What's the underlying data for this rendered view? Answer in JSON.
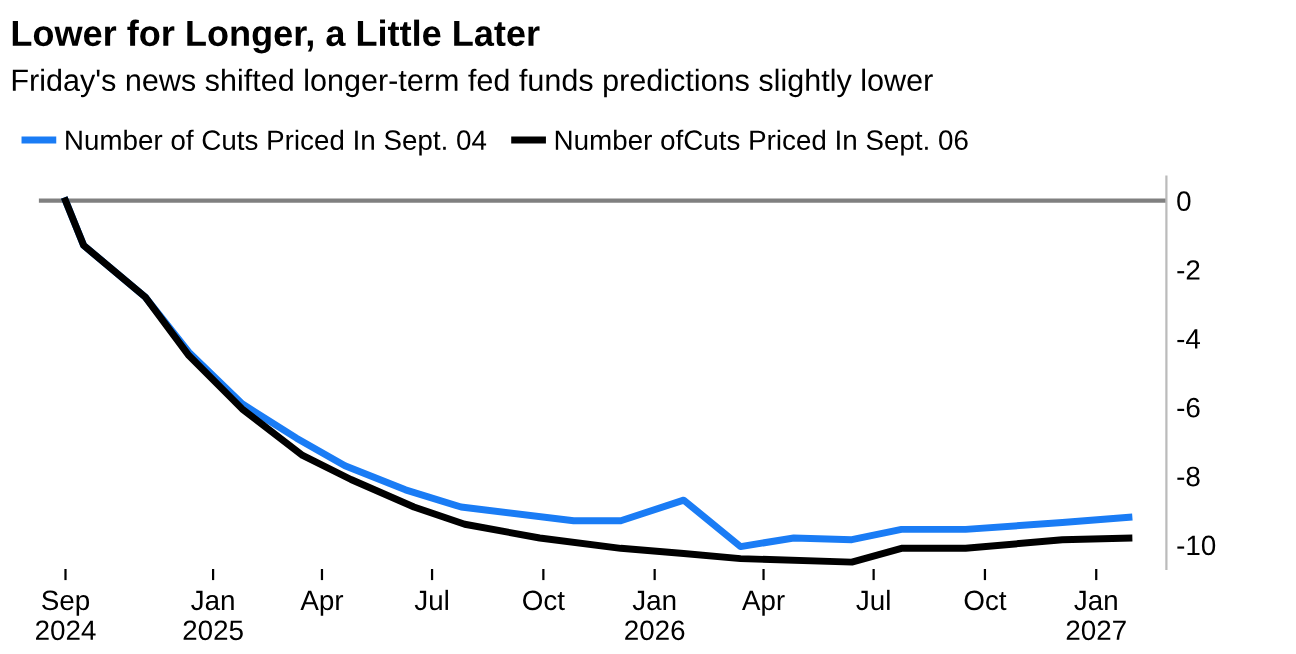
{
  "chart_data": {
    "type": "line",
    "title": "Lower for Longer, a Little Later",
    "subtitle": "Friday's news shifted longer-term fed funds predictions slightly lower",
    "series": [
      {
        "name": "Number of Cuts Priced In Sept. 04",
        "color": "#1a7cf5",
        "x": [
          "2024-09-01",
          "2024-09-16",
          "2024-11-06",
          "2024-12-12",
          "2025-01-25",
          "2025-03-11",
          "2025-04-20",
          "2025-06-09",
          "2025-07-25",
          "2025-10-26",
          "2025-12-04",
          "2026-01-25",
          "2026-03-13",
          "2026-04-26",
          "2026-06-13",
          "2026-07-24",
          "2026-09-15",
          "2026-12-04",
          "2027-01-28"
        ],
        "values": [
          0,
          -1.3,
          -2.8,
          -4.4,
          -5.9,
          -6.9,
          -7.7,
          -8.4,
          -8.9,
          -9.3,
          -9.3,
          -8.7,
          -10.05,
          -9.8,
          -9.85,
          -9.55,
          -9.55,
          -9.35,
          -9.2
        ]
      },
      {
        "name": "Number ofCuts Priced In Sept. 06",
        "color": "#000000",
        "x": [
          "2024-09-01",
          "2024-09-16",
          "2024-11-06",
          "2024-12-12",
          "2025-01-25",
          "2025-03-16",
          "2025-04-25",
          "2025-06-16",
          "2025-07-28",
          "2025-09-28",
          "2025-12-04",
          "2026-01-25",
          "2026-03-13",
          "2026-06-13",
          "2026-07-24",
          "2026-09-15",
          "2026-12-04",
          "2027-01-28"
        ],
        "values": [
          0,
          -1.3,
          -2.8,
          -4.5,
          -6.05,
          -7.4,
          -8.1,
          -8.9,
          -9.4,
          -9.8,
          -10.1,
          -10.25,
          -10.4,
          -10.5,
          -10.1,
          -10.1,
          -9.85,
          -9.8
        ]
      }
    ],
    "xlim": [
      "2024-08-10",
      "2027-02-28"
    ],
    "xticks": [
      {
        "value": "2024-09-01",
        "label": "Sep\n2024"
      },
      {
        "value": "2025-01-01",
        "label": "Jan\n2025"
      },
      {
        "value": "2025-04-01",
        "label": "Apr"
      },
      {
        "value": "2025-07-01",
        "label": "Jul"
      },
      {
        "value": "2025-10-01",
        "label": "Oct"
      },
      {
        "value": "2026-01-01",
        "label": "Jan\n2026"
      },
      {
        "value": "2026-04-01",
        "label": "Apr"
      },
      {
        "value": "2026-07-01",
        "label": "Jul"
      },
      {
        "value": "2026-10-01",
        "label": "Oct"
      },
      {
        "value": "2027-01-01",
        "label": "Jan\n2027"
      }
    ],
    "ylim": [
      -10.7,
      0.7
    ],
    "yticks": [
      0,
      -2,
      -4,
      -6,
      -8,
      -10
    ],
    "ref_lines": [
      {
        "axis": "y",
        "value": 0,
        "color": "#808080"
      }
    ],
    "grid": false,
    "legend": "top left"
  }
}
